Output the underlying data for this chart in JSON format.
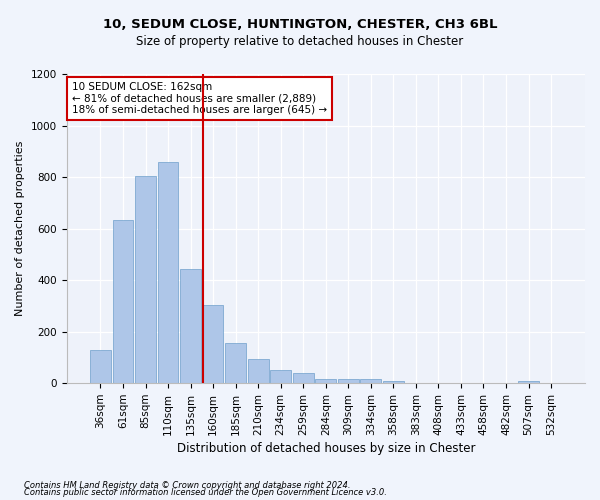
{
  "title1": "10, SEDUM CLOSE, HUNTINGTON, CHESTER, CH3 6BL",
  "title2": "Size of property relative to detached houses in Chester",
  "xlabel": "Distribution of detached houses by size in Chester",
  "ylabel": "Number of detached properties",
  "footer1": "Contains HM Land Registry data © Crown copyright and database right 2024.",
  "footer2": "Contains public sector information licensed under the Open Government Licence v3.0.",
  "annotation_line1": "10 SEDUM CLOSE: 162sqm",
  "annotation_line2": "← 81% of detached houses are smaller (2,889)",
  "annotation_line3": "18% of semi-detached houses are larger (645) →",
  "marker_color": "#cc0000",
  "bar_color": "#aec6e8",
  "bar_edge_color": "#6fa0cc",
  "categories": [
    "36sqm",
    "61sqm",
    "85sqm",
    "110sqm",
    "135sqm",
    "160sqm",
    "185sqm",
    "210sqm",
    "234sqm",
    "259sqm",
    "284sqm",
    "309sqm",
    "334sqm",
    "358sqm",
    "383sqm",
    "408sqm",
    "433sqm",
    "458sqm",
    "482sqm",
    "507sqm",
    "532sqm"
  ],
  "values": [
    130,
    635,
    805,
    860,
    445,
    305,
    155,
    95,
    50,
    38,
    15,
    18,
    18,
    10,
    0,
    0,
    0,
    0,
    0,
    10,
    0
  ],
  "ylim": [
    0,
    1200
  ],
  "yticks": [
    0,
    200,
    400,
    600,
    800,
    1000,
    1200
  ],
  "background_color": "#f0f4fc",
  "plot_bg_color": "#eef2fa",
  "title1_fontsize": 9.5,
  "title2_fontsize": 8.5,
  "xlabel_fontsize": 8.5,
  "ylabel_fontsize": 8,
  "tick_fontsize": 7.5,
  "annotation_fontsize": 7.5,
  "footer_fontsize": 6
}
